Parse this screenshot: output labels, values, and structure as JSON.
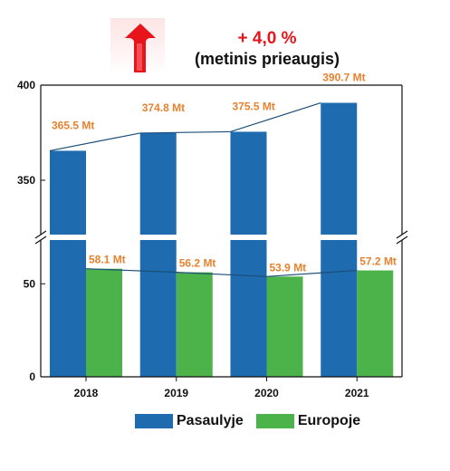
{
  "header": {
    "growth_value": "+ 4,0 %",
    "growth_caption": "(metinis prieaugis)",
    "arrow_icon": "red-up-arrow-icon"
  },
  "colors": {
    "world": "#1f6bb0",
    "europe": "#4cb24a",
    "label": "#e8822e",
    "line": "#1b4e78",
    "axis": "#111111",
    "growth": "#e8141b"
  },
  "chart_data": {
    "type": "bar",
    "categories": [
      "2018",
      "2019",
      "2020",
      "2021"
    ],
    "series": [
      {
        "name": "Pasaulyje",
        "values": [
          365.5,
          374.8,
          375.5,
          390.7
        ],
        "labels": [
          "365.5 Mt",
          "374.8 Mt",
          "375.5 Mt",
          "390.7 Mt"
        ]
      },
      {
        "name": "Europoje",
        "values": [
          58.1,
          56.2,
          53.9,
          57.2
        ],
        "labels": [
          "58.1 Mt",
          "56.2 Mt",
          "53.9 Mt",
          "57.2 Mt"
        ]
      }
    ],
    "broken_axis": {
      "upper_range": [
        320,
        400
      ],
      "lower_range": [
        0,
        75
      ]
    },
    "yticks": [
      {
        "value": 400,
        "label": "400"
      },
      {
        "value": 350,
        "label": "350"
      },
      {
        "value": 50,
        "label": "50"
      },
      {
        "value": 0,
        "label": "0"
      }
    ],
    "trend_lines": true,
    "grid": false,
    "legend_position": "bottom"
  }
}
